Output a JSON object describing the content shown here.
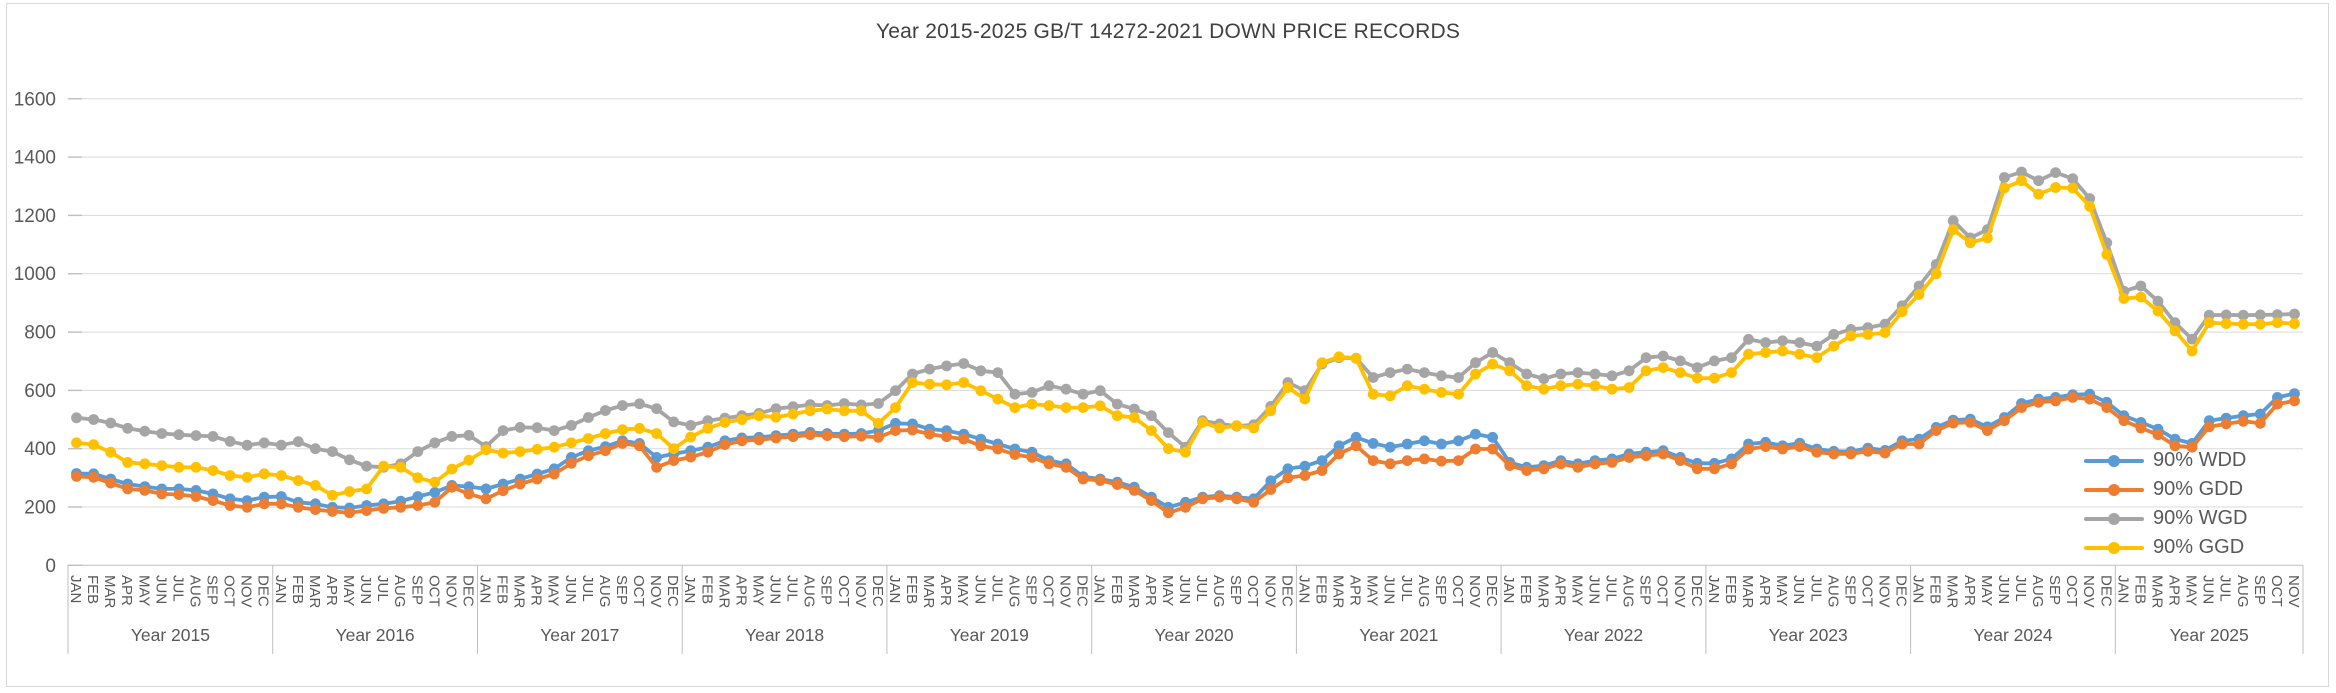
{
  "title": "Year 2015-2025  GB/T 14272-2021  DOWN PRICE RECORDS",
  "colors": {
    "wdd": "#5B9BD5",
    "gdd": "#ED7D31",
    "wgd": "#A5A5A5",
    "ggd": "#FFC000",
    "grid": "#D9D9D9",
    "axis": "#BFBFBF",
    "label_text": "#595959",
    "title_text": "#404040"
  },
  "legend": [
    {
      "label": "90% WDD",
      "color": "wdd"
    },
    {
      "label": "90% GDD",
      "color": "gdd"
    },
    {
      "label": "90% WGD",
      "color": "wgd"
    },
    {
      "label": "90% GGD",
      "color": "ggd"
    }
  ],
  "y_axis": {
    "min": 0,
    "max": 1600,
    "step": 200
  },
  "x_axis": {
    "month_labels": [
      "JAN",
      "FEB",
      "MAR",
      "APR",
      "MAY",
      "JUN",
      "JUL",
      "AUG",
      "SEP",
      "OCT",
      "NOV",
      "DEC"
    ],
    "years": [
      {
        "label": "Year 2015",
        "months": 12
      },
      {
        "label": "Year 2016",
        "months": 12
      },
      {
        "label": "Year 2017",
        "months": 12
      },
      {
        "label": "Year 2018",
        "months": 12
      },
      {
        "label": "Year 2019",
        "months": 12
      },
      {
        "label": "Year 2020",
        "months": 12
      },
      {
        "label": "Year 2021",
        "months": 12
      },
      {
        "label": "Year 2022",
        "months": 12
      },
      {
        "label": "Year 2023",
        "months": 12
      },
      {
        "label": "Year 2024",
        "months": 12
      },
      {
        "label": "Year 2025",
        "months": 11
      }
    ]
  },
  "chart_data": {
    "type": "line",
    "title": "Year 2015-2025  GB/T 14272-2021  DOWN PRICE RECORDS",
    "xlabel": "",
    "ylabel": "",
    "ylim": [
      0,
      1600
    ],
    "grid": true,
    "legend_position": "right-middle-inside",
    "x_range": {
      "start": "JAN Year 2015",
      "end": "NOV Year 2025",
      "unit": "month",
      "points": 131
    },
    "series": [
      {
        "name": "90% WDD",
        "color_key": "wdd",
        "values": [
          315,
          314,
          296,
          279,
          270,
          262,
          262,
          257,
          245,
          228,
          222,
          234,
          236,
          216,
          211,
          199,
          197,
          205,
          211,
          220,
          236,
          250,
          274,
          270,
          262,
          279,
          296,
          313,
          331,
          370,
          393,
          407,
          427,
          418,
          370,
          382,
          393,
          405,
          427,
          437,
          439,
          445,
          450,
          456,
          452,
          450,
          452,
          462,
          487,
          485,
          467,
          462,
          450,
          433,
          416,
          399,
          388,
          359,
          348,
          304,
          296,
          285,
          268,
          234,
          199,
          216,
          234,
          239,
          234,
          228,
          290,
          331,
          340,
          359,
          410,
          439,
          418,
          405,
          416,
          427,
          416,
          427,
          450,
          439,
          353,
          336,
          342,
          359,
          348,
          359,
          365,
          382,
          388,
          393,
          370,
          350,
          350,
          365,
          416,
          422,
          410,
          419,
          399,
          391,
          390,
          402,
          394,
          427,
          433,
          473,
          498,
          501,
          475,
          507,
          555,
          570,
          576,
          585,
          587,
          559,
          513,
          490,
          467,
          433,
          418,
          496,
          505,
          513,
          519,
          576,
          589
        ]
      },
      {
        "name": "90% GDD",
        "color_key": "gdd",
        "values": [
          305,
          302,
          282,
          262,
          257,
          245,
          243,
          236,
          222,
          205,
          199,
          211,
          211,
          199,
          191,
          185,
          180,
          188,
          195,
          199,
          205,
          216,
          268,
          245,
          228,
          256,
          279,
          296,
          313,
          350,
          376,
          393,
          418,
          410,
          336,
          359,
          371,
          388,
          414,
          427,
          430,
          437,
          441,
          448,
          445,
          441,
          443,
          439,
          462,
          464,
          450,
          441,
          433,
          410,
          399,
          380,
          370,
          348,
          336,
          296,
          291,
          277,
          257,
          222,
          180,
          199,
          228,
          234,
          228,
          216,
          260,
          300,
          308,
          325,
          382,
          410,
          359,
          348,
          359,
          365,
          357,
          359,
          399,
          399,
          342,
          325,
          331,
          348,
          336,
          348,
          353,
          370,
          376,
          382,
          359,
          331,
          331,
          348,
          399,
          407,
          399,
          407,
          388,
          382,
          382,
          391,
          385,
          416,
          416,
          462,
          488,
          490,
          462,
          496,
          541,
          559,
          564,
          576,
          570,
          541,
          496,
          471,
          448,
          410,
          405,
          475,
          485,
          494,
          487,
          553,
          564
        ]
      },
      {
        "name": "90% WGD",
        "color_key": "wgd",
        "values": [
          506,
          500,
          488,
          470,
          460,
          452,
          448,
          445,
          442,
          425,
          412,
          420,
          412,
          424,
          400,
          390,
          362,
          340,
          336,
          348,
          390,
          420,
          442,
          446,
          407,
          462,
          473,
          472,
          462,
          480,
          507,
          531,
          548,
          554,
          537,
          492,
          480,
          496,
          505,
          513,
          521,
          537,
          544,
          551,
          548,
          555,
          550,
          555,
          599,
          656,
          673,
          684,
          692,
          667,
          661,
          587,
          593,
          616,
          604,
          587,
          599,
          553,
          536,
          513,
          455,
          405,
          496,
          485,
          477,
          482,
          545,
          627,
          599,
          690,
          712,
          710,
          644,
          661,
          673,
          661,
          650,
          644,
          695,
          730,
          695,
          656,
          640,
          656,
          661,
          656,
          650,
          667,
          712,
          718,
          701,
          678,
          701,
          712,
          775,
          764,
          770,
          764,
          752,
          792,
          809,
          815,
          827,
          890,
          958,
          1032,
          1182,
          1123,
          1151,
          1330,
          1349,
          1319,
          1347,
          1326,
          1258,
          1106,
          940,
          958,
          906,
          832,
          776,
          858,
          859,
          858,
          859,
          860,
          862
        ]
      },
      {
        "name": "90% GGD",
        "color_key": "ggd",
        "values": [
          420,
          414,
          388,
          353,
          348,
          342,
          336,
          336,
          325,
          308,
          302,
          314,
          308,
          291,
          274,
          240,
          253,
          262,
          340,
          336,
          300,
          285,
          330,
          361,
          396,
          385,
          390,
          398,
          405,
          420,
          435,
          452,
          465,
          470,
          452,
          400,
          440,
          470,
          490,
          500,
          513,
          508,
          519,
          530,
          536,
          530,
          530,
          487,
          541,
          627,
          621,
          619,
          627,
          599,
          570,
          541,
          553,
          548,
          541,
          541,
          547,
          513,
          507,
          462,
          400,
          388,
          490,
          471,
          479,
          471,
          530,
          610,
          570,
          695,
          715,
          710,
          587,
          581,
          616,
          604,
          593,
          587,
          656,
          690,
          667,
          616,
          604,
          616,
          621,
          616,
          604,
          610,
          667,
          678,
          661,
          642,
          642,
          661,
          724,
          730,
          735,
          724,
          712,
          752,
          787,
          792,
          798,
          870,
          929,
          1000,
          1151,
          1106,
          1123,
          1294,
          1319,
          1273,
          1296,
          1294,
          1231,
          1066,
          915,
          920,
          872,
          804,
          735,
          832,
          829,
          827,
          827,
          832,
          829
        ]
      }
    ]
  }
}
